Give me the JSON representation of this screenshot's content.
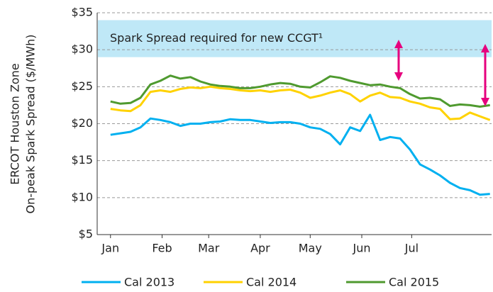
{
  "chart_data": {
    "type": "line",
    "ylabel": [
      "ERCOT Houston Zone",
      "On-peak Spark Spread ($/MWh)"
    ],
    "x": [
      0,
      6,
      12,
      18,
      24,
      30,
      36,
      42,
      48,
      54,
      60,
      66,
      72,
      78,
      84,
      90,
      96,
      102,
      108,
      114,
      120,
      126,
      132,
      138,
      144,
      150,
      156,
      162,
      168,
      174,
      180,
      186,
      192,
      198,
      204,
      210,
      216,
      222,
      228
    ],
    "xlim": [
      -8,
      229
    ],
    "xticks": [
      {
        "value": 0,
        "label": "Jan"
      },
      {
        "value": 31,
        "label": "Feb"
      },
      {
        "value": 59,
        "label": "Mar"
      },
      {
        "value": 90,
        "label": "Apr"
      },
      {
        "value": 120,
        "label": "May"
      },
      {
        "value": 151,
        "label": "Jun"
      },
      {
        "value": 181,
        "label": "Jul"
      }
    ],
    "ylim": [
      5,
      35
    ],
    "yticks": [
      {
        "value": 35,
        "label": "$35"
      },
      {
        "value": 30,
        "label": "$30"
      },
      {
        "value": 25,
        "label": "$25"
      },
      {
        "value": 20,
        "label": "$20"
      },
      {
        "value": 15,
        "label": "$15"
      },
      {
        "value": 10,
        "label": "$10"
      },
      {
        "value": 5,
        "label": "$5"
      }
    ],
    "grid": true,
    "band": {
      "from": 29,
      "to": 34,
      "label": "Spark Spread required for new CCGT¹",
      "color": "#bfe8f7"
    },
    "series": [
      {
        "name": "Cal 2013",
        "color": "#00b0f0",
        "values": [
          18.5,
          18.7,
          18.9,
          19.5,
          20.7,
          20.5,
          20.2,
          19.7,
          20,
          20,
          20.2,
          20.3,
          20.6,
          20.5,
          20.5,
          20.3,
          20.1,
          20.2,
          20.2,
          20.0,
          19.5,
          19.3,
          18.6,
          17.2,
          19.5,
          19.0,
          21.2,
          17.8,
          18.2,
          18.0,
          16.5,
          14.5,
          13.8,
          13.0,
          12.0,
          11.3,
          11.0,
          10.4,
          10.5
        ]
      },
      {
        "name": "Cal 2014",
        "color": "#ffd200",
        "values": [
          22,
          21.8,
          21.7,
          22.5,
          24.3,
          24.5,
          24.3,
          24.7,
          24.9,
          24.8,
          25.0,
          24.8,
          24.7,
          24.5,
          24.4,
          24.5,
          24.3,
          24.5,
          24.6,
          24.2,
          23.5,
          23.8,
          24.2,
          24.5,
          24.0,
          23.0,
          23.8,
          24.2,
          23.6,
          23.5,
          23.0,
          22.7,
          22.2,
          22.0,
          20.6,
          20.7,
          21.5,
          21.0,
          20.5
        ]
      },
      {
        "name": "Cal 2015",
        "color": "#4f9a2f",
        "values": [
          23.0,
          22.7,
          22.8,
          23.5,
          25.3,
          25.8,
          26.5,
          26.1,
          26.3,
          25.7,
          25.3,
          25.1,
          25.0,
          24.8,
          24.8,
          25.0,
          25.3,
          25.5,
          25.4,
          25.0,
          24.9,
          25.6,
          26.4,
          26.2,
          25.8,
          25.5,
          25.2,
          25.3,
          25.0,
          24.8,
          24.0,
          23.4,
          23.5,
          23.3,
          22.4,
          22.6,
          22.5,
          22.3,
          22.5
        ]
      }
    ]
  }
}
